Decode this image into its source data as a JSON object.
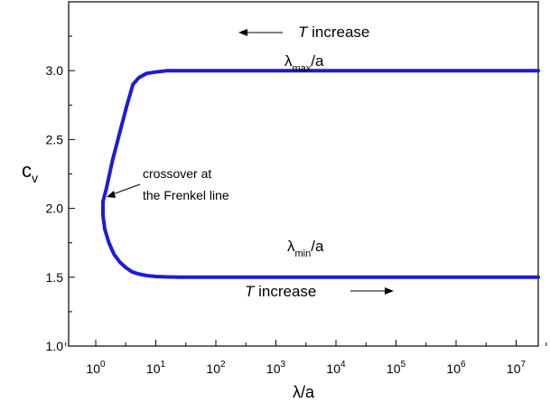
{
  "chart_data": {
    "type": "line",
    "title": "",
    "xlabel": "λ/a",
    "ylabel": {
      "main": "c",
      "sub": "v"
    },
    "x_scale": "log",
    "xlim": [
      -1,
      8
    ],
    "ylim": [
      1.0,
      3.5
    ],
    "x_ticks": [
      {
        "exp": 0,
        "label": "10",
        "sup": "0"
      },
      {
        "exp": 1,
        "label": "10",
        "sup": "1"
      },
      {
        "exp": 2,
        "label": "10",
        "sup": "2"
      },
      {
        "exp": 3,
        "label": "10",
        "sup": "3"
      },
      {
        "exp": 4,
        "label": "10",
        "sup": "4"
      },
      {
        "exp": 5,
        "label": "10",
        "sup": "5"
      },
      {
        "exp": 6,
        "label": "10",
        "sup": "6"
      },
      {
        "exp": 7,
        "label": "10",
        "sup": "7"
      },
      {
        "exp": 8,
        "label": "...",
        "sup": ""
      }
    ],
    "y_ticks": [
      {
        "value": 1.0,
        "label": "1.0"
      },
      {
        "value": 1.5,
        "label": "1.5"
      },
      {
        "value": 2.0,
        "label": "2.0"
      },
      {
        "value": 2.5,
        "label": "2.5"
      },
      {
        "value": 3.0,
        "label": "3.0"
      }
    ],
    "series": [
      {
        "color": "#1c1cd6",
        "log10_x": [
          8.0,
          3.0,
          1.6,
          1.2,
          1.0,
          0.85,
          0.72,
          0.62,
          0.52,
          0.4,
          0.28,
          0.18,
          0.12,
          0.12,
          0.15,
          0.22,
          0.3,
          0.4,
          0.5,
          0.55,
          0.6,
          0.7,
          0.85,
          1.0,
          1.2,
          1.4,
          2.0,
          3.0,
          8.0
        ],
        "y": [
          3.0,
          3.0,
          3.0,
          3.0,
          2.99,
          2.98,
          2.95,
          2.9,
          2.75,
          2.55,
          2.35,
          2.15,
          2.05,
          1.95,
          1.85,
          1.75,
          1.67,
          1.61,
          1.57,
          1.555,
          1.54,
          1.525,
          1.512,
          1.505,
          1.502,
          1.5,
          1.5,
          1.5,
          1.5
        ]
      }
    ],
    "annotations": {
      "top_arrow_text_italic": "T",
      "top_arrow_text": " increase",
      "bottom_arrow_text_italic": "T",
      "bottom_arrow_text": " increase",
      "lambda_max": {
        "main": "λ",
        "sub": "max",
        "tail": "/a"
      },
      "lambda_min": {
        "main": "λ",
        "sub": "min",
        "tail": "/a"
      },
      "crossover_line1": "crossover at",
      "crossover_line2": "the Frenkel line"
    },
    "grid": false,
    "legend": "none"
  }
}
